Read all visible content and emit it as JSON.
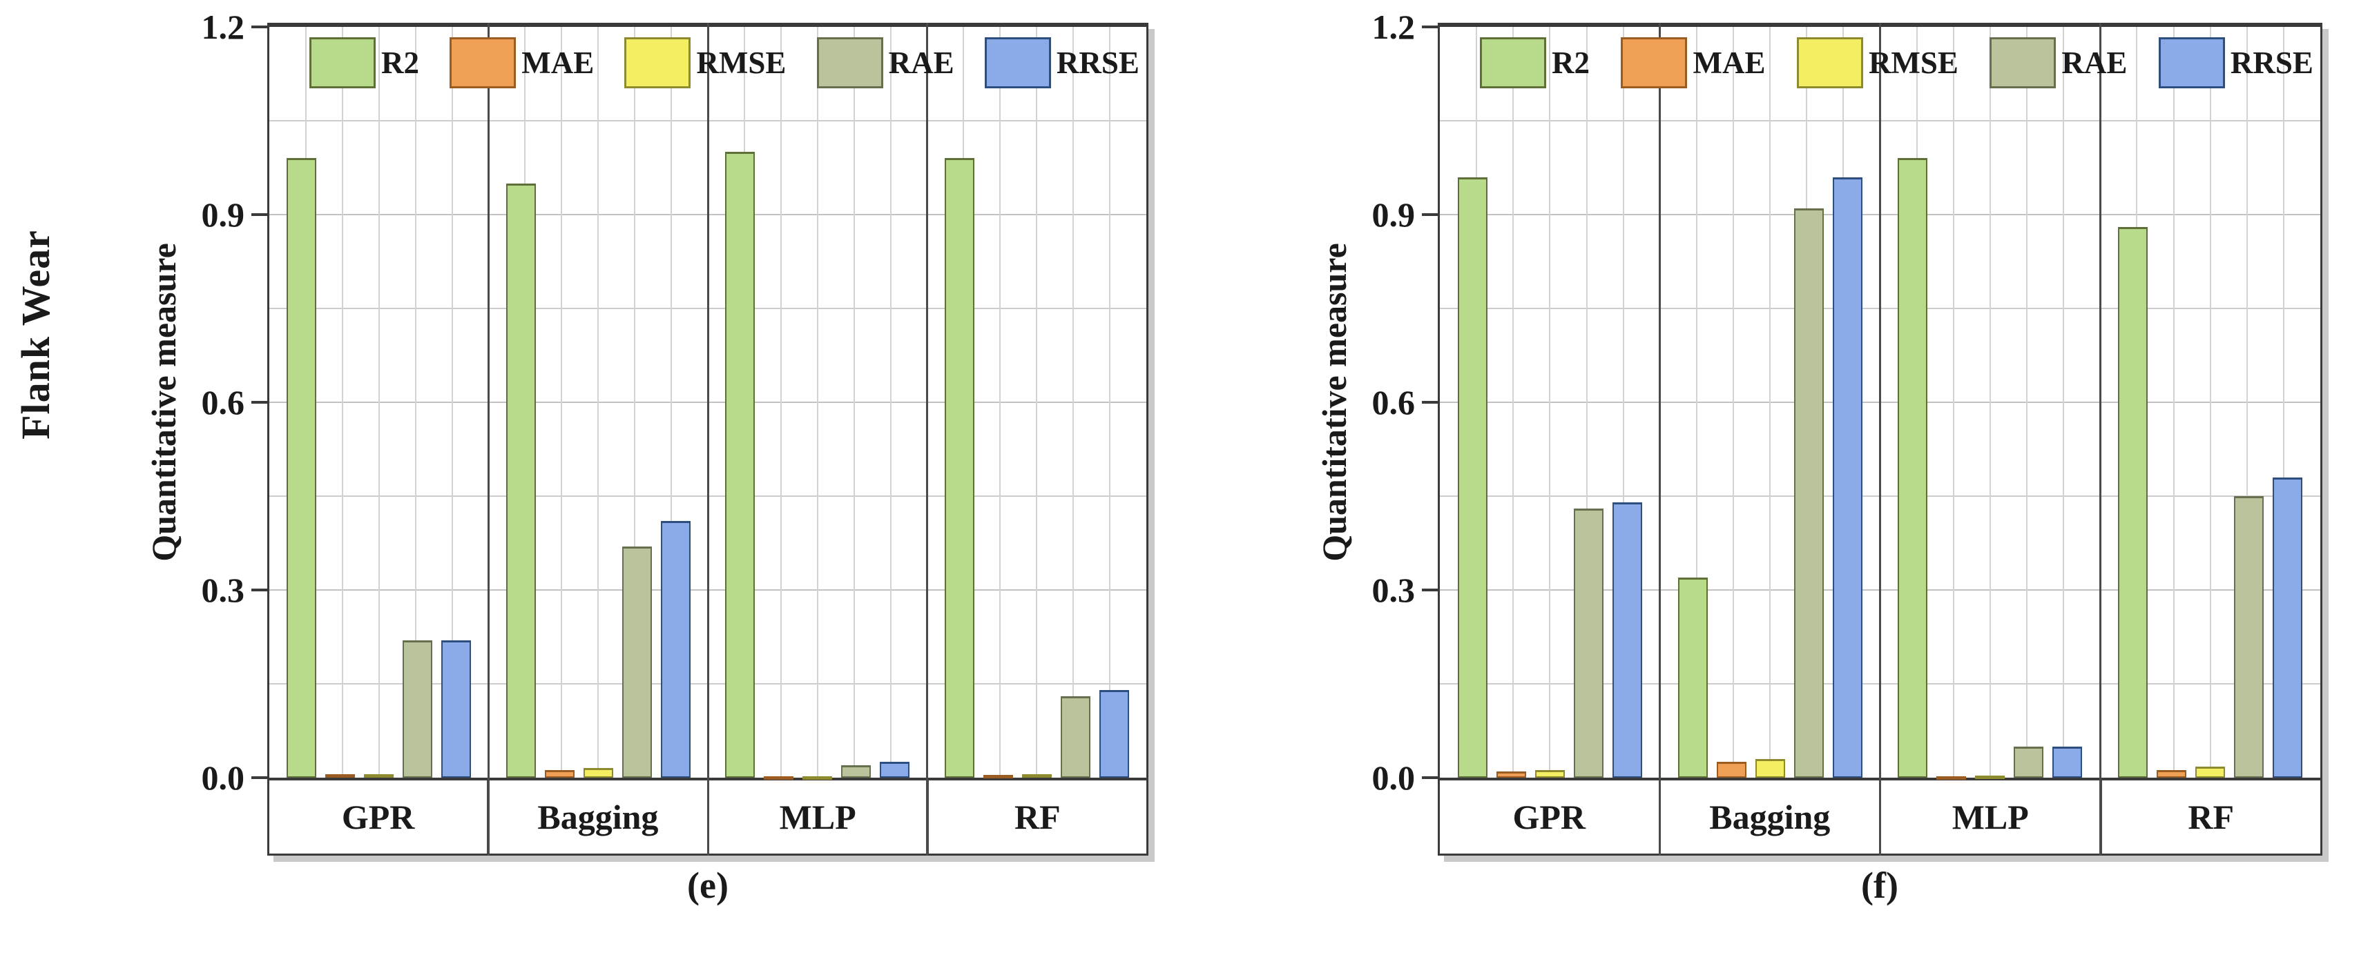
{
  "figure": {
    "row_label": "Flank Wear"
  },
  "chart_data": [
    {
      "type": "bar",
      "caption": "(e)",
      "ylabel": "Quantitative measure",
      "xlabel": "",
      "ylim": [
        0,
        1.2
      ],
      "ytick_labels": [
        "0.0",
        "0.3",
        "0.6",
        "0.9",
        "1.2"
      ],
      "grid": true,
      "legend_position": "top-inside",
      "categories": [
        "GPR",
        "Bagging",
        "MLP",
        "RF"
      ],
      "series": [
        {
          "name": "R2",
          "color": "#b7da8b",
          "border": "#5e7038",
          "values": [
            0.99,
            0.95,
            1.0,
            0.99
          ]
        },
        {
          "name": "MAE",
          "color": "#f0a054",
          "border": "#9a5c20",
          "values": [
            0.005,
            0.012,
            0.002,
            0.004
          ]
        },
        {
          "name": "RMSE",
          "color": "#f4ee63",
          "border": "#8e8a2e",
          "values": [
            0.006,
            0.015,
            0.002,
            0.005
          ]
        },
        {
          "name": "RAE",
          "color": "#bac49c",
          "border": "#66704e",
          "values": [
            0.22,
            0.37,
            0.02,
            0.13
          ]
        },
        {
          "name": "RRSE",
          "color": "#8aabe8",
          "border": "#2e4e80",
          "values": [
            0.22,
            0.41,
            0.025,
            0.14
          ]
        }
      ]
    },
    {
      "type": "bar",
      "caption": "(f)",
      "ylabel": "Quantitative measure",
      "xlabel": "",
      "ylim": [
        0,
        1.2
      ],
      "ytick_labels": [
        "0.0",
        "0.3",
        "0.6",
        "0.9",
        "1.2"
      ],
      "grid": true,
      "legend_position": "top-inside",
      "categories": [
        "GPR",
        "Bagging",
        "MLP",
        "RF"
      ],
      "series": [
        {
          "name": "R2",
          "color": "#b7da8b",
          "border": "#5e7038",
          "values": [
            0.96,
            0.32,
            0.99,
            0.88
          ]
        },
        {
          "name": "MAE",
          "color": "#f0a054",
          "border": "#9a5c20",
          "values": [
            0.01,
            0.025,
            0.002,
            0.012
          ]
        },
        {
          "name": "RMSE",
          "color": "#f4ee63",
          "border": "#8e8a2e",
          "values": [
            0.012,
            0.03,
            0.003,
            0.018
          ]
        },
        {
          "name": "RAE",
          "color": "#bac49c",
          "border": "#66704e",
          "values": [
            0.43,
            0.91,
            0.05,
            0.45
          ]
        },
        {
          "name": "RRSE",
          "color": "#8aabe8",
          "border": "#2e4e80",
          "values": [
            0.44,
            0.96,
            0.05,
            0.48
          ]
        }
      ]
    }
  ]
}
